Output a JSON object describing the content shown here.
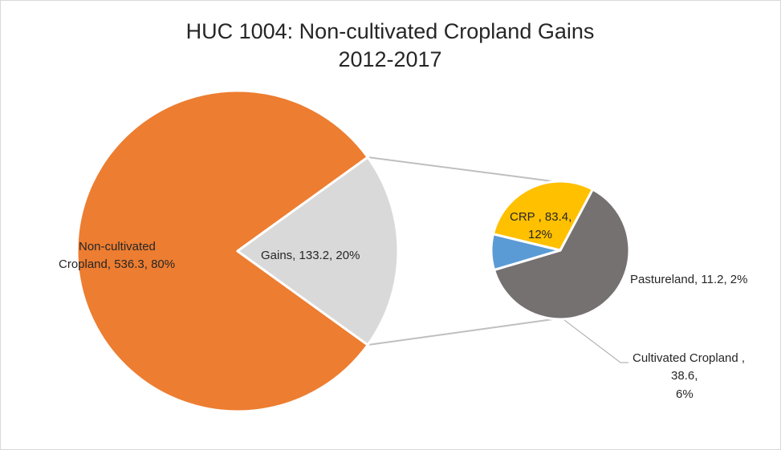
{
  "chart_data": {
    "type": "pie",
    "variant": "pie-of-pie",
    "title": "HUC 1004: Non-cultivated Cropland Gains",
    "subtitle": "2012-2017",
    "main_slices": [
      {
        "label": "Non-cultivated Cropland",
        "value": 536.3,
        "percent": "80%",
        "color": "#ED7D31"
      },
      {
        "label": "Gains",
        "value": 133.2,
        "percent": "20%",
        "color": "#D9D9D9"
      }
    ],
    "secondary_slices": [
      {
        "label": "CRP",
        "value": 83.4,
        "percent": "12%",
        "color": "#767171"
      },
      {
        "label": "Pastureland",
        "value": 11.2,
        "percent": "2%",
        "color": "#5B9BD5"
      },
      {
        "label": "Cultivated Cropland",
        "value": 38.6,
        "percent": "6%",
        "color": "#FFC000"
      }
    ],
    "data_labels": {
      "noncult_line1": "Non-cultivated",
      "noncult_line2": "Cropland, 536.3, 80%",
      "gains": "Gains, 133.2, 20%",
      "crp_line1": "CRP , 83.4,",
      "crp_line2": "12%",
      "pasture": "Pastureland, 11.2, 2%",
      "cult_line1": "Cultivated Cropland ,",
      "cult_line2": "38.6,",
      "cult_line3": "6%"
    },
    "connector_color": "#BFBFBF"
  }
}
